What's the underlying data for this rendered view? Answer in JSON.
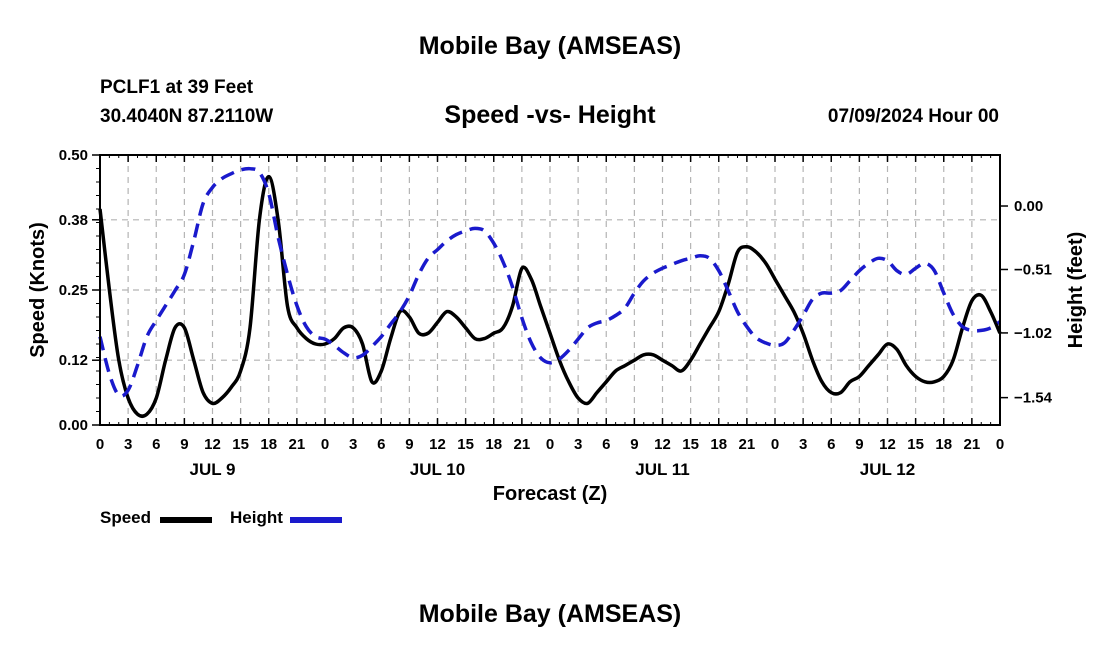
{
  "page": {
    "title": "Mobile Bay (AMSEAS)",
    "station": "PCLF1 at 39 Feet",
    "coords": "30.4040N  87.2110W",
    "subtitle": "Speed -vs- Height",
    "datetime": "07/09/2024 Hour 00",
    "footer_title": "Mobile Bay (AMSEAS)"
  },
  "legend": {
    "speed_label": "Speed",
    "height_label": "Height"
  },
  "colors": {
    "speed": "#000000",
    "height": "#1a1acc",
    "grid": "#b4b4b4"
  },
  "chart_data": {
    "type": "line",
    "title": "Speed -vs- Height",
    "xlabel": "Forecast (Z)",
    "ylabel": "Speed (Knots)",
    "y2label": "Height (feet)",
    "xlim": [
      0,
      96
    ],
    "ylim": [
      0,
      0.5
    ],
    "y2lim": [
      -1.76,
      0.41
    ],
    "yticks": [
      0.0,
      0.12,
      0.25,
      0.38,
      0.5
    ],
    "ytick_labels": [
      "0.00",
      "0.12",
      "0.25",
      "0.38",
      "0.50"
    ],
    "y2ticks": [
      -1.54,
      -1.02,
      -0.51,
      0.0
    ],
    "y2tick_labels": [
      "−1.54",
      "−1.02",
      "−0.51",
      "0.00"
    ],
    "xtick_labels": [
      "0",
      "3",
      "6",
      "9",
      "12",
      "15",
      "18",
      "21",
      "0",
      "3",
      "6",
      "9",
      "12",
      "15",
      "18",
      "21",
      "0",
      "3",
      "6",
      "9",
      "12",
      "15",
      "18",
      "21",
      "0",
      "3",
      "6",
      "9",
      "12",
      "15",
      "18",
      "21",
      "0"
    ],
    "day_labels": [
      {
        "label": "JUL 9",
        "x": 12
      },
      {
        "label": "JUL 10",
        "x": 36
      },
      {
        "label": "JUL 11",
        "x": 60
      },
      {
        "label": "JUL 12",
        "x": 84
      }
    ],
    "series": [
      {
        "name": "Speed",
        "axis": "left",
        "style": "solid",
        "x": [
          0,
          1,
          2,
          3,
          4,
          5,
          6,
          7,
          8,
          9,
          10,
          11,
          12,
          13,
          14,
          15,
          16,
          17,
          18,
          19,
          20,
          21,
          22,
          23,
          24,
          25,
          26,
          27,
          28,
          29,
          30,
          31,
          32,
          33,
          34,
          35,
          36,
          37,
          38,
          39,
          40,
          41,
          42,
          43,
          44,
          45,
          46,
          47,
          48,
          49,
          50,
          51,
          52,
          53,
          54,
          55,
          56,
          57,
          58,
          59,
          60,
          61,
          62,
          63,
          64,
          65,
          66,
          67,
          68,
          69,
          70,
          71,
          72,
          73,
          74,
          75,
          76,
          77,
          78,
          79,
          80,
          81,
          82,
          83,
          84,
          85,
          86,
          87,
          88,
          89,
          90,
          91,
          92,
          93,
          94,
          95,
          96
        ],
        "values": [
          0.4,
          0.25,
          0.12,
          0.05,
          0.02,
          0.02,
          0.05,
          0.12,
          0.18,
          0.18,
          0.12,
          0.06,
          0.04,
          0.05,
          0.07,
          0.1,
          0.18,
          0.38,
          0.46,
          0.38,
          0.22,
          0.18,
          0.16,
          0.15,
          0.15,
          0.16,
          0.18,
          0.18,
          0.15,
          0.08,
          0.1,
          0.16,
          0.21,
          0.2,
          0.17,
          0.17,
          0.19,
          0.21,
          0.2,
          0.18,
          0.16,
          0.16,
          0.17,
          0.18,
          0.22,
          0.29,
          0.27,
          0.22,
          0.17,
          0.12,
          0.08,
          0.05,
          0.04,
          0.06,
          0.08,
          0.1,
          0.11,
          0.12,
          0.13,
          0.13,
          0.12,
          0.11,
          0.1,
          0.12,
          0.15,
          0.18,
          0.21,
          0.26,
          0.32,
          0.33,
          0.32,
          0.3,
          0.27,
          0.24,
          0.21,
          0.17,
          0.12,
          0.08,
          0.06,
          0.06,
          0.08,
          0.09,
          0.11,
          0.13,
          0.15,
          0.14,
          0.11,
          0.09,
          0.08,
          0.08,
          0.09,
          0.12,
          0.18,
          0.23,
          0.24,
          0.21,
          0.17
        ]
      },
      {
        "name": "Height",
        "axis": "right",
        "style": "dashed",
        "x": [
          0,
          1,
          2,
          3,
          4,
          5,
          6,
          7,
          8,
          9,
          10,
          11,
          12,
          13,
          14,
          15,
          16,
          17,
          18,
          19,
          20,
          21,
          22,
          23,
          24,
          25,
          26,
          27,
          28,
          29,
          30,
          31,
          32,
          33,
          34,
          35,
          36,
          37,
          38,
          39,
          40,
          41,
          42,
          43,
          44,
          45,
          46,
          47,
          48,
          49,
          50,
          51,
          52,
          53,
          54,
          55,
          56,
          57,
          58,
          59,
          60,
          61,
          62,
          63,
          64,
          65,
          66,
          67,
          68,
          69,
          70,
          71,
          72,
          73,
          74,
          75,
          76,
          77,
          78,
          79,
          80,
          81,
          82,
          83,
          84,
          85,
          86,
          87,
          88,
          89,
          90,
          91,
          92,
          93,
          94,
          95,
          96
        ],
        "values": [
          -1.05,
          -1.35,
          -1.52,
          -1.48,
          -1.28,
          -1.05,
          -0.92,
          -0.8,
          -0.68,
          -0.55,
          -0.28,
          0.02,
          0.15,
          0.22,
          0.26,
          0.29,
          0.3,
          0.27,
          0.1,
          -0.25,
          -0.55,
          -0.8,
          -0.97,
          -1.05,
          -1.07,
          -1.12,
          -1.18,
          -1.22,
          -1.2,
          -1.13,
          -1.05,
          -0.95,
          -0.85,
          -0.72,
          -0.55,
          -0.42,
          -0.35,
          -0.28,
          -0.23,
          -0.2,
          -0.18,
          -0.2,
          -0.3,
          -0.45,
          -0.65,
          -0.9,
          -1.1,
          -1.22,
          -1.26,
          -1.23,
          -1.16,
          -1.07,
          -0.98,
          -0.94,
          -0.92,
          -0.88,
          -0.82,
          -0.7,
          -0.6,
          -0.54,
          -0.5,
          -0.47,
          -0.44,
          -0.42,
          -0.4,
          -0.42,
          -0.52,
          -0.68,
          -0.85,
          -0.97,
          -1.06,
          -1.1,
          -1.12,
          -1.1,
          -1.0,
          -0.88,
          -0.75,
          -0.7,
          -0.7,
          -0.68,
          -0.6,
          -0.52,
          -0.46,
          -0.42,
          -0.44,
          -0.52,
          -0.55,
          -0.5,
          -0.46,
          -0.52,
          -0.7,
          -0.87,
          -0.97,
          -1.0,
          -1.0,
          -0.98,
          -0.93
        ]
      }
    ]
  }
}
